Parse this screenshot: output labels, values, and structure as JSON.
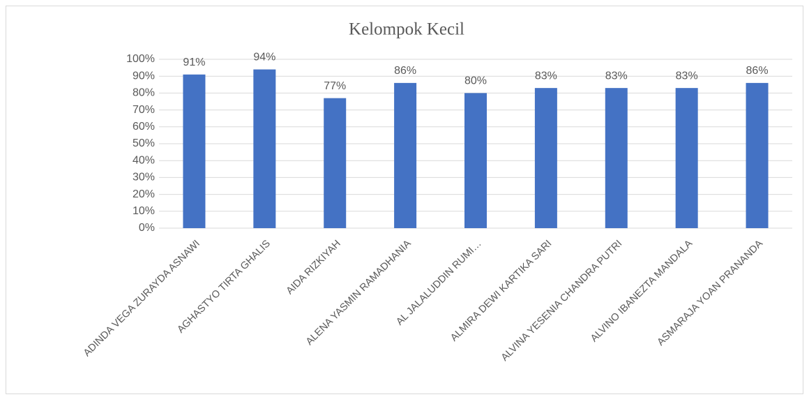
{
  "chart_data": {
    "type": "bar",
    "title": "Kelompok Kecil",
    "categories": [
      "ADINDA VEGA ZURAYDA ASNAWI",
      "AGHASTYO TIRTA GHALIS",
      "AIDA RIZKIYAH",
      "ALENA YASMIN RAMADHANIA",
      "AL JALALUDDIN RUMI…",
      "ALMIRA DEWI KARTIKA SARI",
      "ALVINA YESENIA CHANDRA PUTRI",
      "ALVINO IBANEZTA MANDALA",
      "ASMARAJA YOAN PRANANDA"
    ],
    "values": [
      91,
      94,
      77,
      86,
      80,
      83,
      83,
      83,
      86
    ],
    "value_labels": [
      "91%",
      "94%",
      "77%",
      "86%",
      "80%",
      "83%",
      "83%",
      "83%",
      "86%"
    ],
    "color": "#4472c4",
    "ylim": [
      0,
      100
    ],
    "yticks": [
      {
        "value": 0,
        "label": "0%"
      },
      {
        "value": 10,
        "label": "10%"
      },
      {
        "value": 20,
        "label": "20%"
      },
      {
        "value": 30,
        "label": "30%"
      },
      {
        "value": 40,
        "label": "40%"
      },
      {
        "value": 50,
        "label": "50%"
      },
      {
        "value": 60,
        "label": "60%"
      },
      {
        "value": 70,
        "label": "70%"
      },
      {
        "value": 80,
        "label": "80%"
      },
      {
        "value": 90,
        "label": "90%"
      },
      {
        "value": 100,
        "label": "100%"
      }
    ],
    "grid": true
  }
}
